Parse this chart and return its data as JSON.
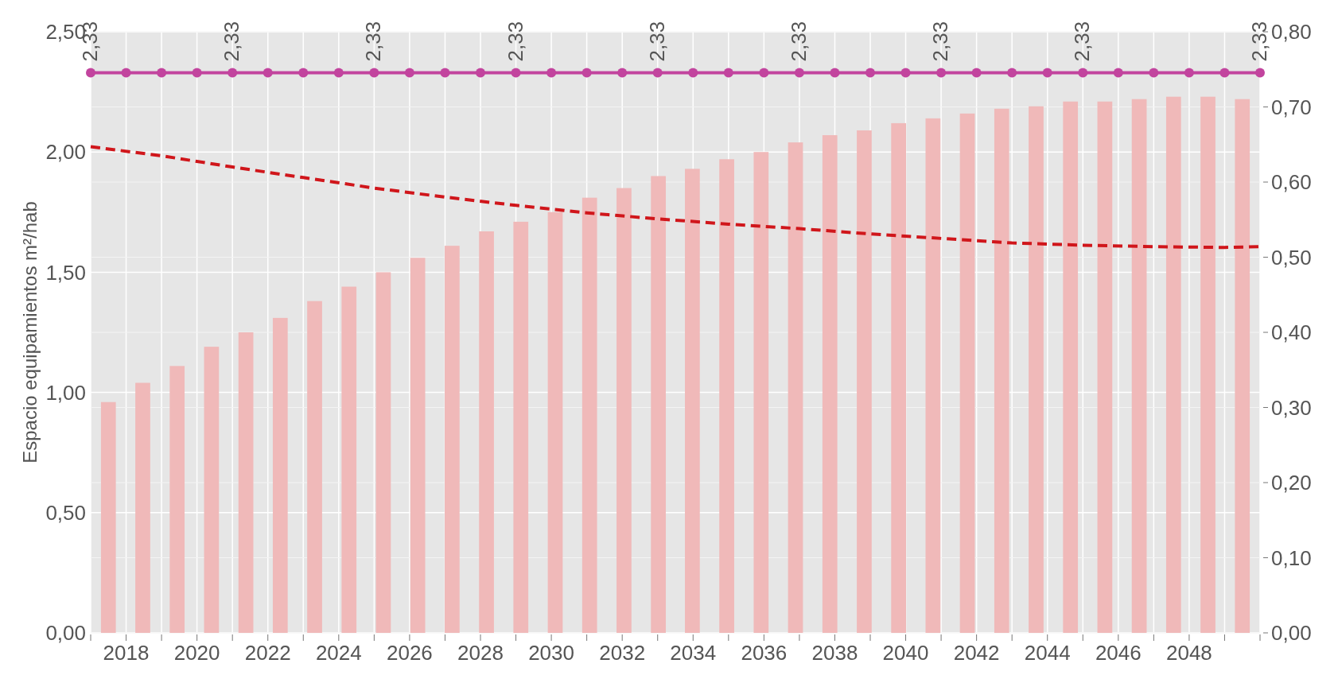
{
  "chart_data": {
    "type": "bar",
    "ylabel": "Espacio equipamientos m²/hab",
    "xlim": [
      2017,
      2050
    ],
    "xticks": [
      {
        "value": 2017,
        "label": null
      },
      {
        "value": 2018,
        "label": "2018"
      },
      {
        "value": 2019,
        "label": null
      },
      {
        "value": 2020,
        "label": "2020"
      },
      {
        "value": 2021,
        "label": null
      },
      {
        "value": 2022,
        "label": "2022"
      },
      {
        "value": 2023,
        "label": null
      },
      {
        "value": 2024,
        "label": "2024"
      },
      {
        "value": 2025,
        "label": null
      },
      {
        "value": 2026,
        "label": "2026"
      },
      {
        "value": 2027,
        "label": null
      },
      {
        "value": 2028,
        "label": "2028"
      },
      {
        "value": 2029,
        "label": null
      },
      {
        "value": 2030,
        "label": "2030"
      },
      {
        "value": 2031,
        "label": null
      },
      {
        "value": 2032,
        "label": "2032"
      },
      {
        "value": 2033,
        "label": null
      },
      {
        "value": 2034,
        "label": "2034"
      },
      {
        "value": 2035,
        "label": null
      },
      {
        "value": 2036,
        "label": "2036"
      },
      {
        "value": 2037,
        "label": null
      },
      {
        "value": 2038,
        "label": "2038"
      },
      {
        "value": 2039,
        "label": null
      },
      {
        "value": 2040,
        "label": "2040"
      },
      {
        "value": 2041,
        "label": null
      },
      {
        "value": 2042,
        "label": "2042"
      },
      {
        "value": 2043,
        "label": null
      },
      {
        "value": 2044,
        "label": "2044"
      },
      {
        "value": 2045,
        "label": null
      },
      {
        "value": 2046,
        "label": "2046"
      },
      {
        "value": 2047,
        "label": null
      },
      {
        "value": 2048,
        "label": "2048"
      },
      {
        "value": 2049,
        "label": null
      },
      {
        "value": 2050,
        "label": null
      }
    ],
    "ylim": [
      0,
      2.5
    ],
    "yticks": [
      {
        "value": 0,
        "label": "0,00"
      },
      {
        "value": 0.5,
        "label": "0,50"
      },
      {
        "value": 1,
        "label": "1,00"
      },
      {
        "value": 1.5,
        "label": "1,50"
      },
      {
        "value": 2,
        "label": "2,00"
      },
      {
        "value": 2.5,
        "label": "2,50"
      }
    ],
    "y2lim": [
      0,
      0.8
    ],
    "y2ticks": [
      {
        "value": 0,
        "label": "0,00"
      },
      {
        "value": 0.1,
        "label": "0,10"
      },
      {
        "value": 0.2,
        "label": "0,20"
      },
      {
        "value": 0.3,
        "label": "0,30"
      },
      {
        "value": 0.4,
        "label": "0,40"
      },
      {
        "value": 0.5,
        "label": "0,50"
      },
      {
        "value": 0.6,
        "label": "0,60"
      },
      {
        "value": 0.7,
        "label": "0,70"
      },
      {
        "value": 0.8,
        "label": "0,80"
      }
    ],
    "grid": true,
    "series": [
      {
        "color": "#f0b9b9",
        "x": [
          2017.5,
          2018.47,
          2019.44,
          2020.41,
          2021.38,
          2022.35,
          2023.32,
          2024.29,
          2025.26,
          2026.23,
          2027.2,
          2028.17,
          2029.14,
          2030.11,
          2031.08,
          2032.05,
          2033.02,
          2033.98,
          2034.95,
          2035.92,
          2036.89,
          2037.86,
          2038.83,
          2039.8,
          2040.77,
          2041.74,
          2042.71,
          2043.68,
          2044.65,
          2045.62,
          2046.59,
          2047.56,
          2048.53,
          2049.5
        ],
        "values": [
          0.96,
          1.04,
          1.11,
          1.19,
          1.25,
          1.31,
          1.38,
          1.44,
          1.5,
          1.56,
          1.61,
          1.67,
          1.71,
          1.75,
          1.81,
          1.85,
          1.9,
          1.93,
          1.97,
          2.0,
          2.04,
          2.07,
          2.09,
          2.12,
          2.14,
          2.16,
          2.18,
          2.19,
          2.21,
          2.21,
          2.22,
          2.23,
          2.23,
          2.22
        ]
      },
      {
        "type": "line",
        "color": "#c2449e",
        "marker": "circle",
        "line_style": "solid",
        "x": [
          2017,
          2018,
          2019,
          2020,
          2021,
          2022,
          2023,
          2024,
          2025,
          2026,
          2027,
          2028,
          2029,
          2030,
          2031,
          2032,
          2033,
          2034,
          2035,
          2036,
          2037,
          2038,
          2039,
          2040,
          2041,
          2042,
          2043,
          2044,
          2045,
          2046,
          2047,
          2048,
          2049,
          2050
        ],
        "values": [
          2.33,
          2.33,
          2.33,
          2.33,
          2.33,
          2.33,
          2.33,
          2.33,
          2.33,
          2.33,
          2.33,
          2.33,
          2.33,
          2.33,
          2.33,
          2.33,
          2.33,
          2.33,
          2.33,
          2.33,
          2.33,
          2.33,
          2.33,
          2.33,
          2.33,
          2.33,
          2.33,
          2.33,
          2.33,
          2.33,
          2.33,
          2.33,
          2.33,
          2.33
        ],
        "value_labels": [
          "2,33",
          null,
          null,
          null,
          "2,33",
          null,
          null,
          null,
          "2,33",
          null,
          null,
          null,
          "2,33",
          null,
          null,
          null,
          "2,33",
          null,
          null,
          null,
          "2,33",
          null,
          null,
          null,
          "2,33",
          null,
          null,
          null,
          "2,33",
          null,
          null,
          null,
          null,
          "2,33"
        ]
      },
      {
        "type": "line",
        "axis": "y2",
        "color": "#d0161b",
        "marker": "none",
        "line_style": "dashed",
        "x": [
          2017,
          2019,
          2021,
          2023,
          2025,
          2027,
          2029,
          2031,
          2033,
          2035,
          2037,
          2039,
          2041,
          2043,
          2045,
          2047,
          2049,
          2050
        ],
        "values": [
          0.647,
          0.635,
          0.62,
          0.606,
          0.592,
          0.58,
          0.569,
          0.559,
          0.551,
          0.544,
          0.538,
          0.531,
          0.525,
          0.519,
          0.516,
          0.514,
          0.513,
          0.514
        ]
      }
    ]
  }
}
